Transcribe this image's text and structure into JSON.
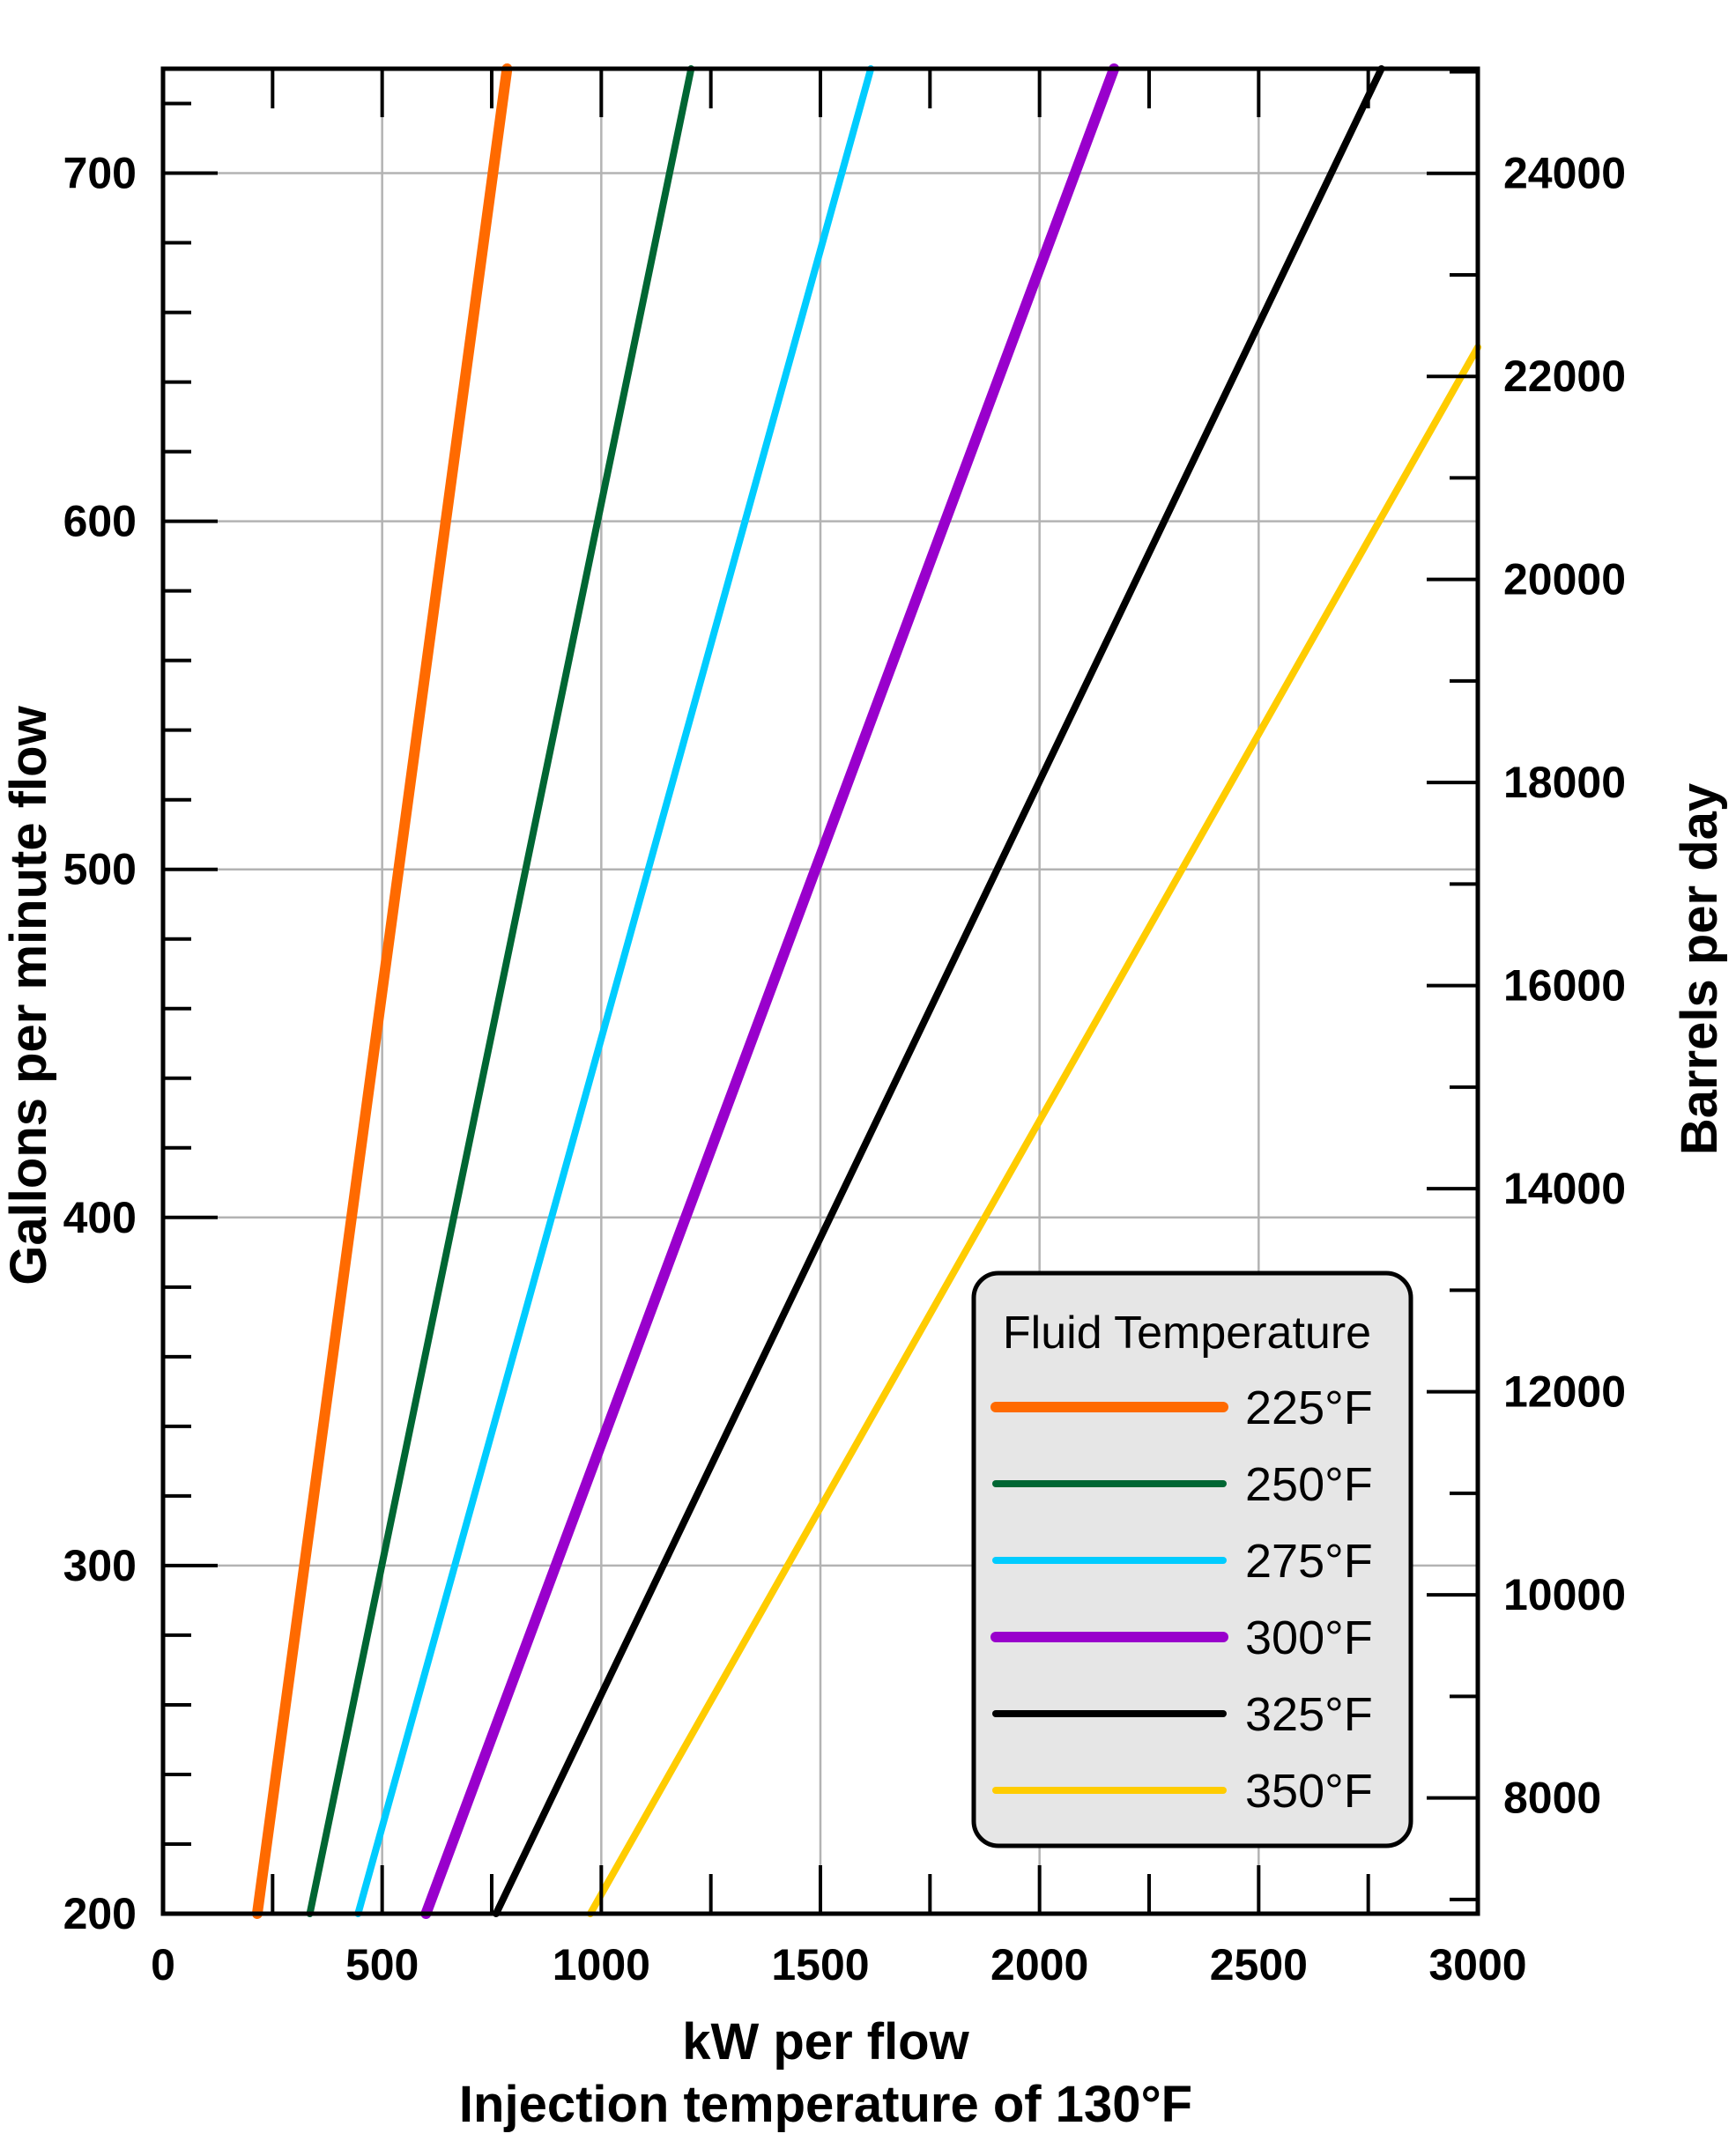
{
  "chart_data": {
    "type": "line",
    "title": "",
    "xlabel": "kW per flow",
    "subtitle": "Injection temperature of 130°F",
    "ylabel": "Gallons per minute flow",
    "y2label": "Barrels per day",
    "xlim": [
      0,
      3000
    ],
    "ylim": [
      200,
      730
    ],
    "y2lim": [
      6860,
      25030
    ],
    "grid": true,
    "x_ticks": [
      "0",
      "500",
      "1000",
      "1500",
      "2000",
      "2500",
      "3000"
    ],
    "x_tick_values": [
      0,
      500,
      1000,
      1500,
      2000,
      2500,
      3000
    ],
    "y_ticks": [
      "200",
      "300",
      "400",
      "500",
      "600",
      "700"
    ],
    "y_tick_values": [
      200,
      300,
      400,
      500,
      600,
      700
    ],
    "y2_ticks": [
      "8000",
      "10000",
      "12000",
      "14000",
      "16000",
      "18000",
      "20000",
      "22000",
      "24000"
    ],
    "y2_tick_values": [
      8000,
      10000,
      12000,
      14000,
      16000,
      18000,
      20000,
      22000,
      24000
    ],
    "legend": {
      "title": "Fluid Temperature",
      "position": "bottom-right"
    },
    "series": [
      {
        "name": "225°F",
        "color": "#FF6A00",
        "stroke": 12,
        "points": [
          [
            215,
            200
          ],
          [
            785,
            730
          ]
        ]
      },
      {
        "name": "250°F",
        "color": "#006633",
        "stroke": 8,
        "points": [
          [
            335,
            200
          ],
          [
            1205,
            730
          ]
        ]
      },
      {
        "name": "275°F",
        "color": "#00CCFF",
        "stroke": 8,
        "points": [
          [
            445,
            200
          ],
          [
            1615,
            730
          ]
        ]
      },
      {
        "name": "300°F",
        "color": "#9900CC",
        "stroke": 12,
        "points": [
          [
            600,
            200
          ],
          [
            2170,
            730
          ]
        ]
      },
      {
        "name": "325°F",
        "color": "#000000",
        "stroke": 8,
        "points": [
          [
            760,
            200
          ],
          [
            2780,
            730
          ]
        ]
      },
      {
        "name": "350°F",
        "color": "#FFCC00",
        "stroke": 8,
        "points": [
          [
            975,
            200
          ],
          [
            3000,
            650
          ]
        ]
      }
    ]
  }
}
